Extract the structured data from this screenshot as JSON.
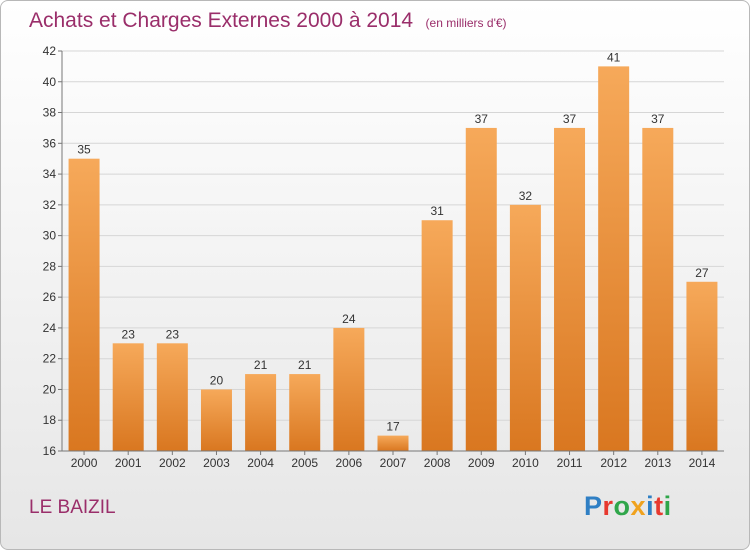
{
  "header": {
    "title": "Achats et Charges Externes 2000 à 2014",
    "subtitle": "(en milliers d'€)"
  },
  "footer": {
    "place": "LE BAIZIL",
    "logo_text": "Proxiti"
  },
  "colors": {
    "title": "#9a2e6a",
    "bar_top": "#f6a95a",
    "bar_bottom": "#d97720",
    "logo_letters": [
      "#2f7fc4",
      "#e7392f",
      "#2fa64a",
      "#f0a21e",
      "#2f7fc4",
      "#e7392f",
      "#2fa64a"
    ]
  },
  "chart_data": {
    "type": "bar",
    "title": "Achats et Charges Externes 2000 à 2014",
    "subtitle": "(en milliers d'€)",
    "xlabel": "",
    "ylabel": "",
    "categories": [
      "2000",
      "2001",
      "2002",
      "2003",
      "2004",
      "2005",
      "2006",
      "2007",
      "2008",
      "2009",
      "2010",
      "2011",
      "2012",
      "2013",
      "2014"
    ],
    "values": [
      35,
      23,
      23,
      20,
      21,
      21,
      24,
      17,
      31,
      37,
      32,
      37,
      41,
      37,
      27
    ],
    "ylim": [
      16,
      42
    ],
    "yticks": [
      16,
      18,
      20,
      22,
      24,
      26,
      28,
      30,
      32,
      34,
      36,
      38,
      40,
      42
    ],
    "grid": true,
    "data_labels": true,
    "legend": "none"
  }
}
